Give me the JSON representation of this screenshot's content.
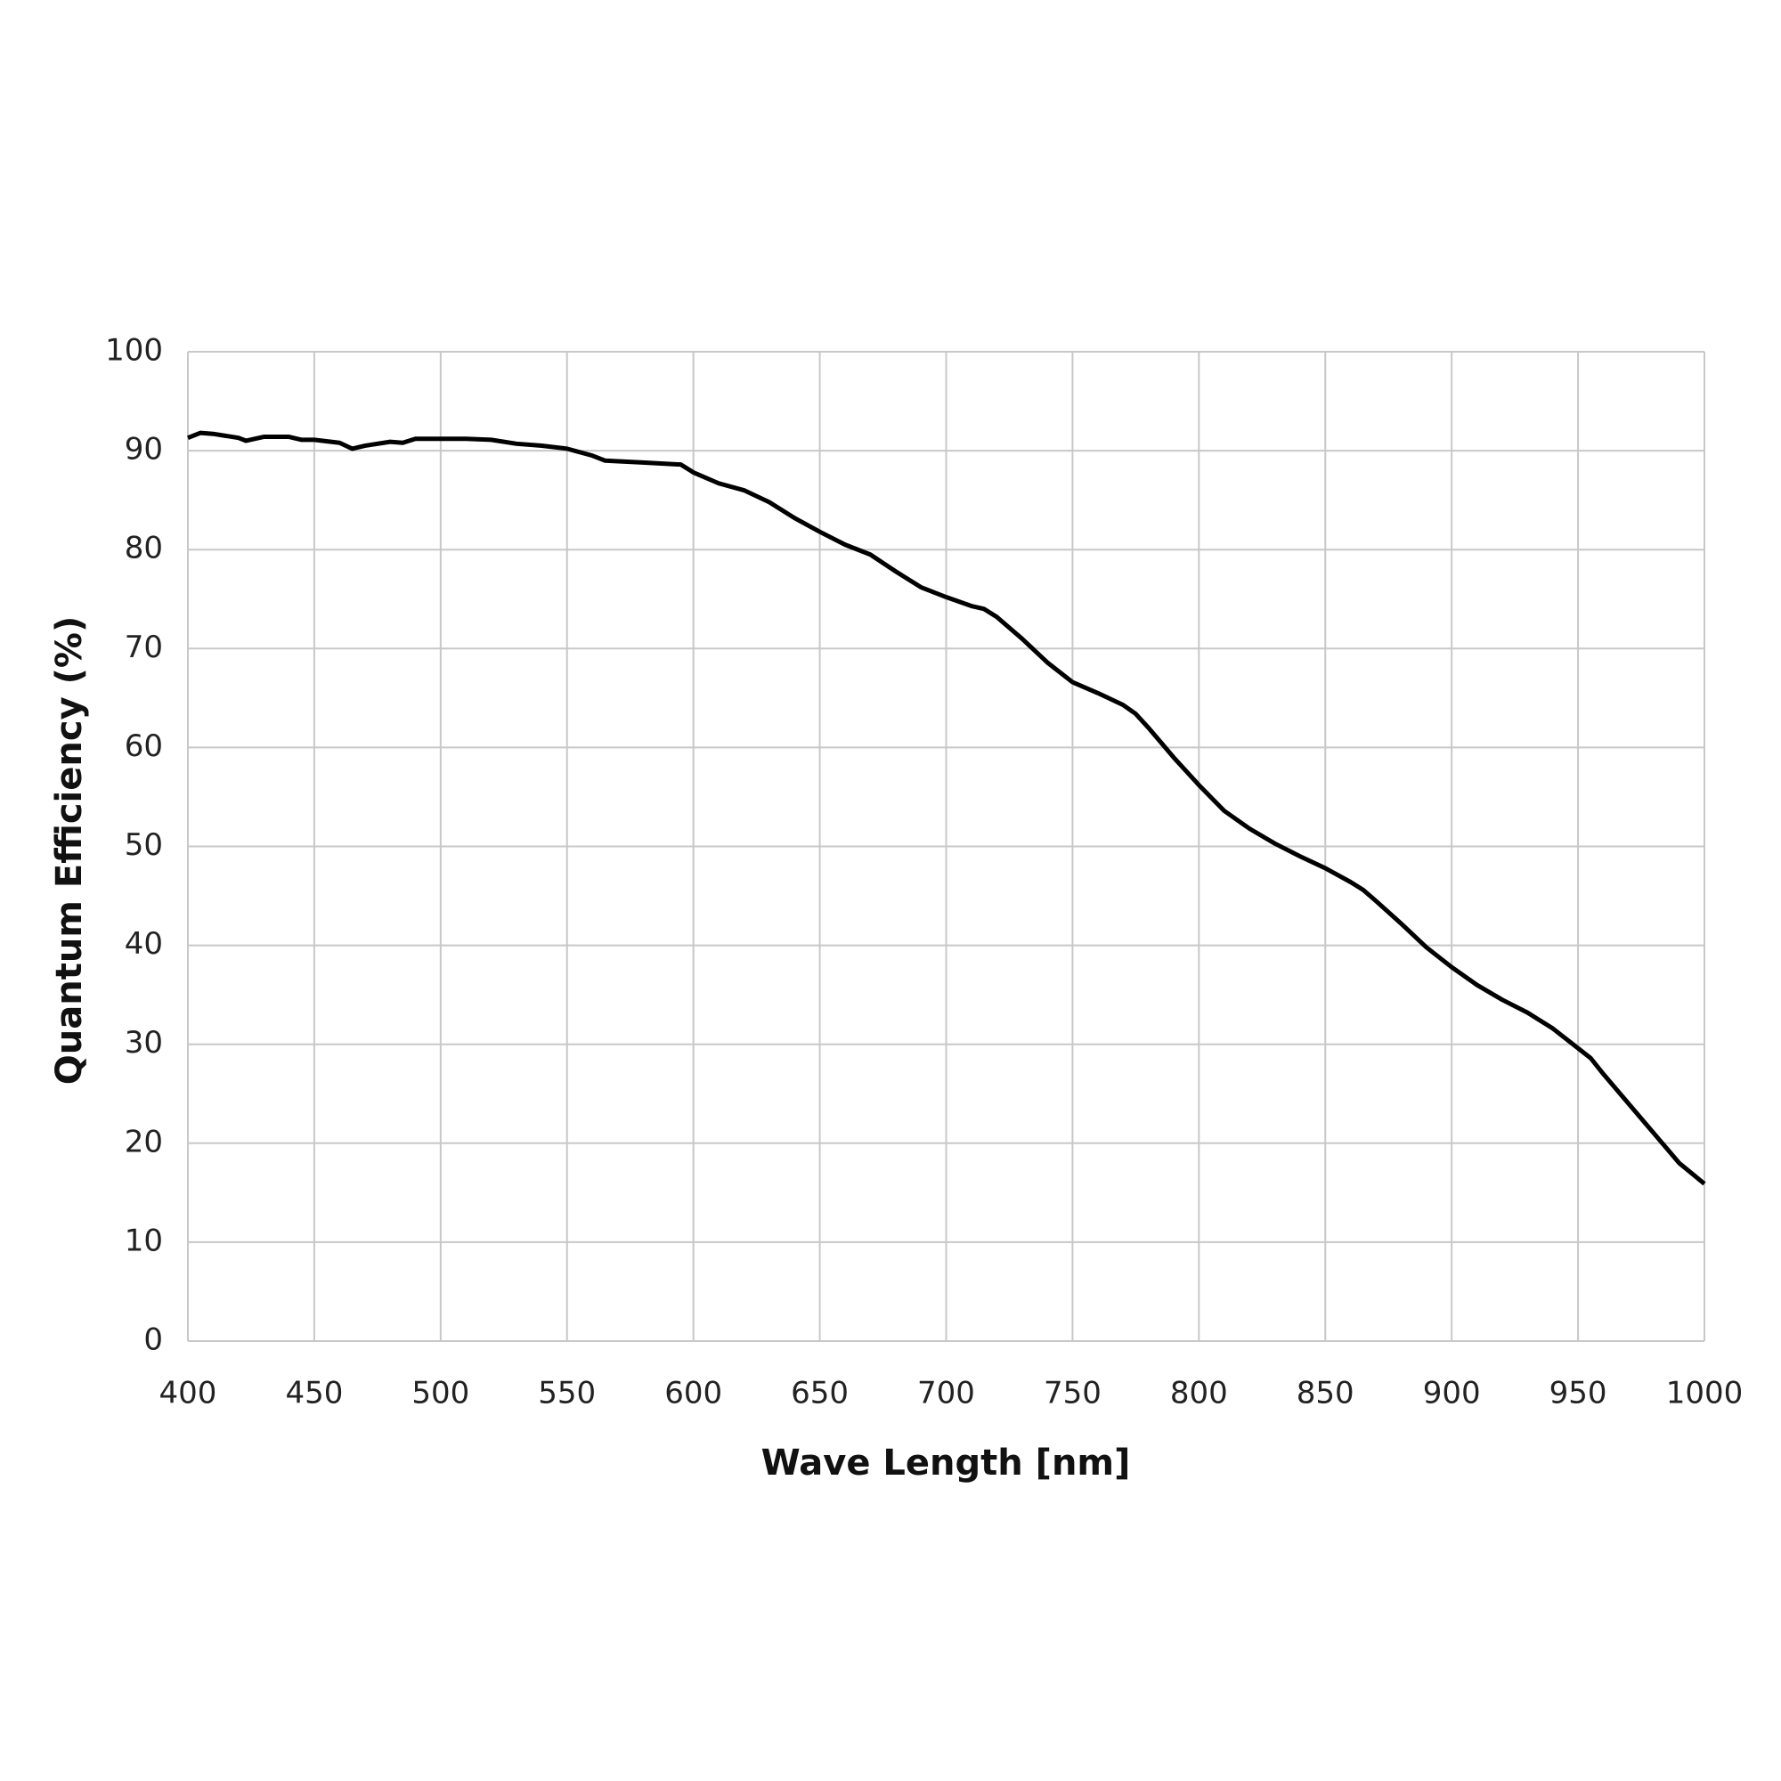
{
  "chart_data": {
    "type": "line",
    "x_label": "Wave Length [nm]",
    "y_label": "Quantum Efficiency  (%)",
    "x": [
      400,
      405,
      410,
      420,
      423,
      430,
      440,
      445,
      450,
      460,
      465,
      470,
      480,
      485,
      490,
      500,
      510,
      520,
      530,
      540,
      550,
      560,
      565,
      580,
      595,
      600,
      610,
      620,
      630,
      640,
      650,
      660,
      670,
      680,
      690,
      700,
      710,
      715,
      720,
      730,
      740,
      750,
      760,
      770,
      775,
      780,
      790,
      800,
      810,
      820,
      830,
      840,
      850,
      860,
      865,
      870,
      880,
      890,
      900,
      910,
      920,
      930,
      940,
      950,
      955,
      960,
      970,
      980,
      990,
      1000
    ],
    "series": [
      {
        "color": "#000000",
        "values": [
          91.3,
          91.8,
          91.7,
          91.3,
          91.0,
          91.4,
          91.4,
          91.1,
          91.1,
          90.8,
          90.2,
          90.5,
          90.9,
          90.8,
          91.2,
          91.2,
          91.2,
          91.1,
          90.7,
          90.5,
          90.2,
          89.5,
          89.0,
          88.8,
          88.6,
          87.8,
          86.7,
          86.0,
          84.8,
          83.2,
          81.8,
          80.5,
          79.5,
          77.8,
          76.2,
          75.2,
          74.3,
          74.0,
          73.2,
          71.0,
          68.6,
          66.6,
          65.5,
          64.3,
          63.4,
          62.0,
          59.0,
          56.2,
          53.6,
          51.8,
          50.3,
          49.0,
          47.8,
          46.4,
          45.6,
          44.5,
          42.2,
          39.8,
          37.8,
          36.0,
          34.5,
          33.2,
          31.6,
          29.6,
          28.6,
          27.0,
          24.0,
          21.0,
          18.0,
          15.9
        ]
      }
    ],
    "xlim": [
      400,
      1000
    ],
    "xticks": [
      400,
      450,
      500,
      550,
      600,
      650,
      700,
      750,
      800,
      850,
      900,
      950,
      1000
    ],
    "ylim": [
      0,
      100
    ],
    "yticks": [
      0,
      10,
      20,
      30,
      40,
      50,
      60,
      70,
      80,
      90,
      100
    ],
    "grid": true
  }
}
